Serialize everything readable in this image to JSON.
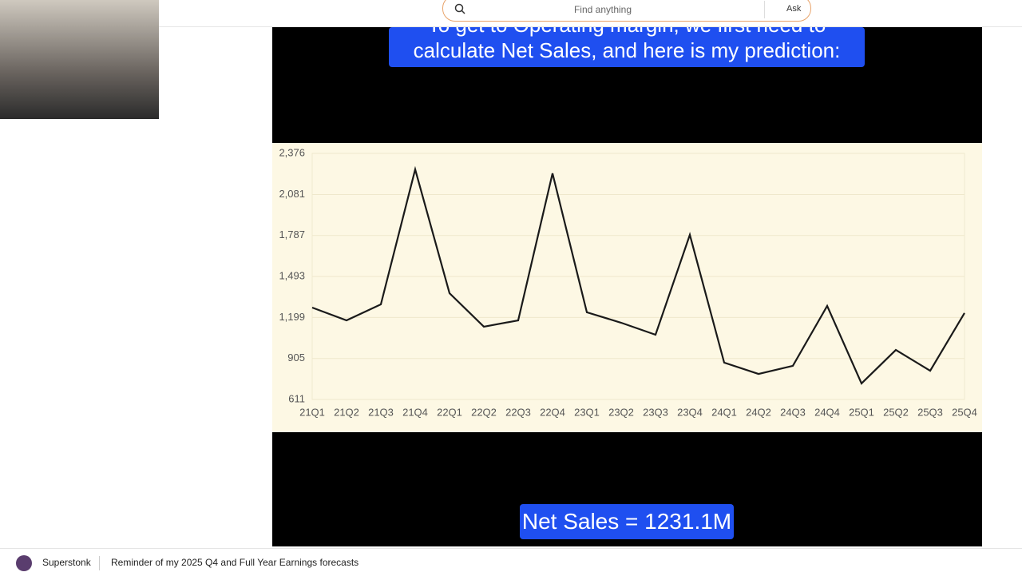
{
  "header": {
    "search_placeholder": "Find anything",
    "ask": "Ask"
  },
  "video": {
    "caption_top": [
      "To get to Operating margin, we first need to",
      "calculate Net Sales, and here is my prediction:"
    ],
    "caption_bottom": "Net Sales = 1231.1M"
  },
  "chart_data": {
    "type": "line",
    "categories": [
      "21Q1",
      "21Q2",
      "21Q3",
      "21Q4",
      "22Q1",
      "22Q2",
      "22Q3",
      "22Q4",
      "23Q1",
      "23Q2",
      "23Q3",
      "23Q4",
      "24Q1",
      "24Q2",
      "24Q3",
      "24Q4",
      "25Q1",
      "25Q2",
      "25Q3",
      "25Q4"
    ],
    "values": [
      1270,
      1178,
      1293,
      2261,
      1373,
      1133,
      1178,
      2233,
      1236,
      1161,
      1075,
      1792,
      875,
      794,
      852,
      1282,
      726,
      966,
      817,
      1231
    ],
    "color": "#1a1a1a",
    "ylim": [
      611,
      2376
    ],
    "yticks": [
      611,
      905,
      {
        "value": 1199,
        "label": "1,199"
      },
      {
        "value": 1493,
        "label": "1,493"
      },
      {
        "value": 1787,
        "label": "1,787"
      },
      {
        "value": 2081,
        "label": "2,081"
      },
      {
        "value": 2376,
        "label": "2,376"
      }
    ],
    "grid": true
  },
  "footer": {
    "community": "Superstonk",
    "post_title": "Reminder of my 2025 Q4 and Full Year Earnings forecasts"
  }
}
